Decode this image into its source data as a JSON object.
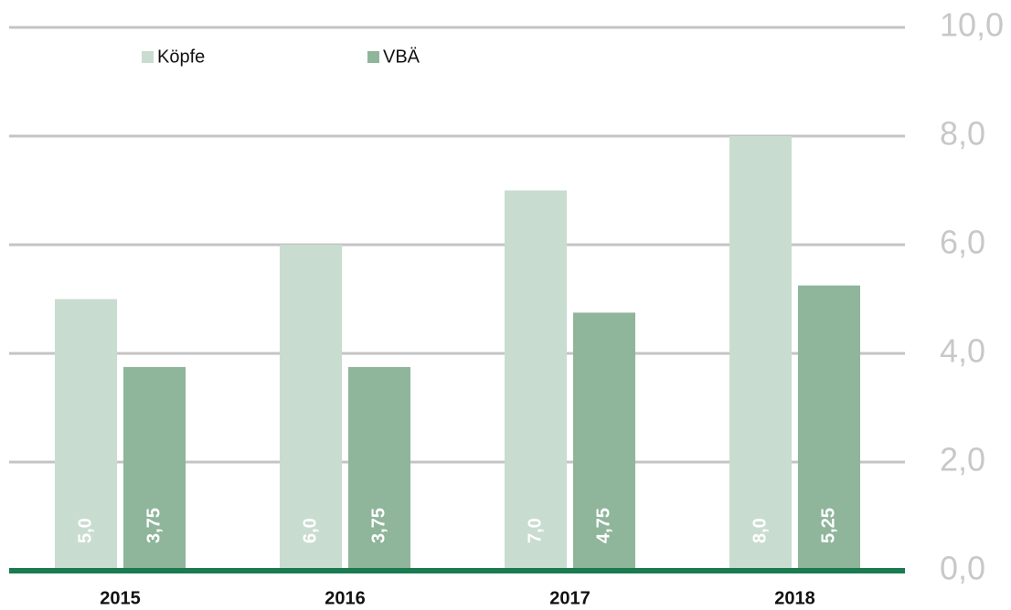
{
  "chart_data": {
    "type": "bar",
    "categories": [
      "2015",
      "2016",
      "2017",
      "2018"
    ],
    "series": [
      {
        "name": "Köpfe",
        "color": "#c9dcd0",
        "values": [
          5,
          6,
          7,
          8
        ],
        "value_labels": [
          "5,0",
          "6,0",
          "7,0",
          "8,0"
        ]
      },
      {
        "name": "VBÄ",
        "color": "#8fb59b",
        "values": [
          3.75,
          3.75,
          4.75,
          5.25
        ],
        "value_labels": [
          "3,75",
          "3,75",
          "4,75",
          "5,25"
        ]
      }
    ],
    "ylim": [
      0,
      10
    ],
    "yticks": [
      {
        "value": 0,
        "label": "0,0"
      },
      {
        "value": 2,
        "label": "2,0"
      },
      {
        "value": 4,
        "label": "4,0"
      },
      {
        "value": 6,
        "label": "6,0"
      },
      {
        "value": 8,
        "label": "8,0"
      },
      {
        "value": 10,
        "label": "10,0"
      }
    ],
    "grid": true
  }
}
